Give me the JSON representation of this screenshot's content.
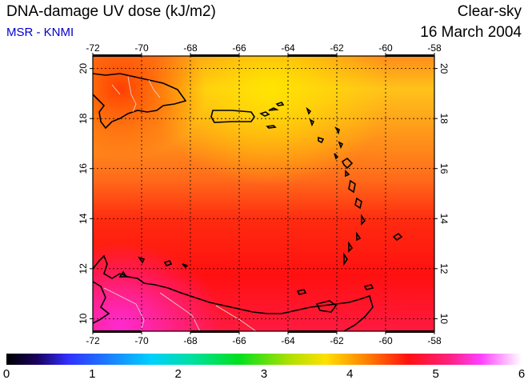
{
  "header": {
    "title": "DNA-damage UV dose (kJ/m2)",
    "source": "MSR - KNMI",
    "sky": "Clear-sky",
    "date": "16 March 2004"
  },
  "map": {
    "lon_ticks": [
      "-72",
      "-70",
      "-68",
      "-66",
      "-64",
      "-62",
      "-60",
      "-58"
    ],
    "lat_ticks": [
      "10",
      "12",
      "14",
      "16",
      "18",
      "20"
    ],
    "lon_range": [
      -72,
      -58
    ],
    "lat_range": [
      9.5,
      20.5
    ],
    "grid": true
  },
  "colorbar": {
    "labels": [
      "0",
      "1",
      "2",
      "3",
      "4",
      "5",
      "6"
    ],
    "range": [
      0,
      6
    ]
  },
  "colors": {
    "source_text": "#0000cc",
    "low": "#000000",
    "high": "#ffffff"
  }
}
